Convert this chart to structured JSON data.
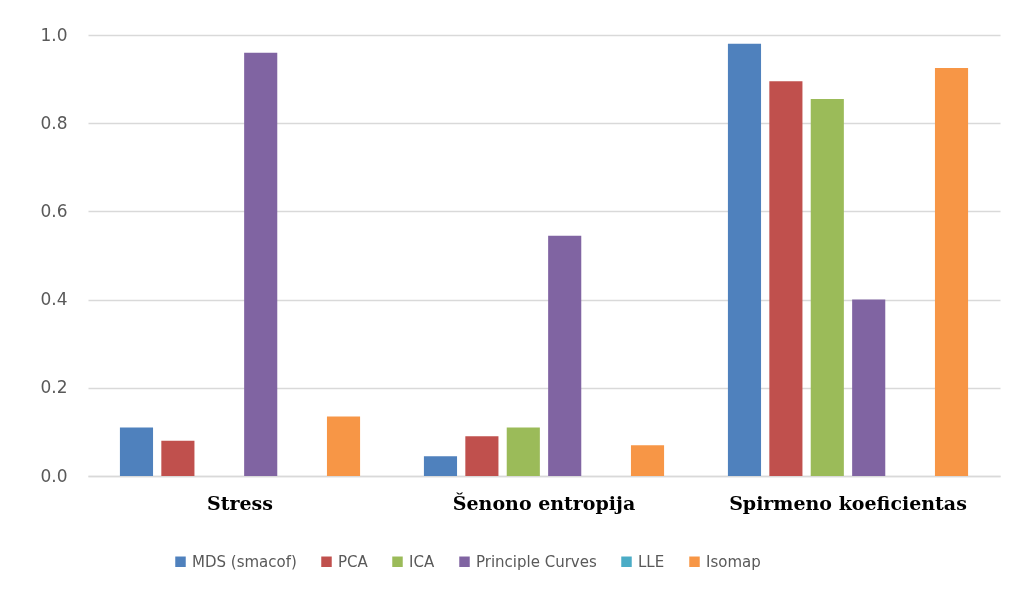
{
  "chart_data": {
    "type": "bar",
    "categories": [
      "Stress",
      "Šenono entropija",
      "Spirmeno koeficientas"
    ],
    "series": [
      {
        "name": "MDS (smacof)",
        "color": "#4f81bd",
        "values": [
          0.11,
          0.045,
          0.98
        ]
      },
      {
        "name": "PCA",
        "color": "#c0504d",
        "values": [
          0.08,
          0.09,
          0.895
        ]
      },
      {
        "name": "ICA",
        "color": "#9bbb59",
        "values": [
          null,
          0.11,
          0.855
        ]
      },
      {
        "name": "Principle Curves",
        "color": "#8064a2",
        "values": [
          0.96,
          0.545,
          0.4
        ]
      },
      {
        "name": "LLE",
        "color": "#4bacc6",
        "values": [
          null,
          null,
          null
        ]
      },
      {
        "name": "Isomap",
        "color": "#f79646",
        "values": [
          0.135,
          0.07,
          0.925
        ]
      }
    ],
    "ylim": [
      0,
      1
    ],
    "yticks": [
      {
        "value": 0,
        "label": "0.0"
      },
      {
        "value": 0.2,
        "label": "0.2"
      },
      {
        "value": 0.4,
        "label": "0.4"
      },
      {
        "value": 0.6,
        "label": "0.6"
      },
      {
        "value": 0.8,
        "label": "0.8"
      },
      {
        "value": 1,
        "label": "1.0"
      }
    ],
    "grid": "y",
    "legend": "bottom"
  }
}
